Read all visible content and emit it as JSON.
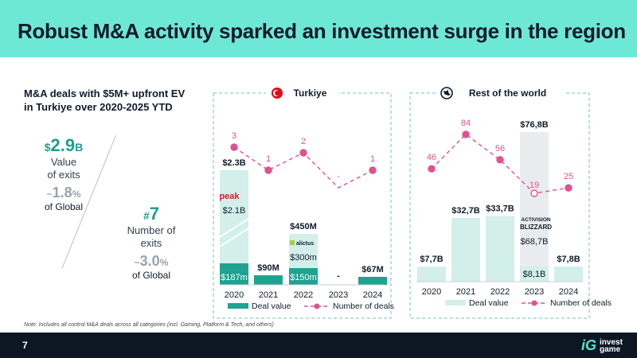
{
  "slide": {
    "title": "Robust M&A activity sparked an investment surge in the region",
    "page_number": "7",
    "note": "Note: Includes all control M&A deals across all categories (incl. Gaming, Platform & Tech, and others)",
    "logo_mark": "iG",
    "logo_line1": "invest",
    "logo_line2": "game"
  },
  "summary": {
    "heading_line1": "M&A deals with $5M+ upfront EV",
    "heading_line2": "in Turkiye over 2020-2025 YTD",
    "value_currency": "$",
    "value_number": "2.9",
    "value_unit": "B",
    "value_label1": "Value",
    "value_label2": "of exits",
    "value_share_prefix": "~",
    "value_share_number": "1.8",
    "value_share_unit": "%",
    "value_share_label": "of Global",
    "count_prefix": "#",
    "count_number": "7",
    "count_label1": "Number of",
    "count_label2": "exits",
    "count_share_prefix": "~",
    "count_share_number": "3.0",
    "count_share_unit": "%",
    "count_share_label": "of Global"
  },
  "colors": {
    "bar": "#d3efea",
    "bar_accent": "#1fa390",
    "line": "#e0528f",
    "gray_bar": "#e9ecef",
    "frame": "#73c6b4"
  },
  "chart_data": [
    {
      "type": "bar",
      "title": "Turkiye",
      "categories": [
        "2020",
        "2021",
        "2022",
        "2023",
        "2024"
      ],
      "series": [
        {
          "name": "Deal value",
          "values": [
            2300,
            90,
            450,
            0,
            67
          ],
          "unit": "$M"
        },
        {
          "name": "Deal value (highlighted portion)",
          "values": [
            187,
            90,
            150,
            0,
            67
          ],
          "unit": "$M"
        },
        {
          "name": "Number of deals",
          "values": [
            3,
            1,
            2,
            0,
            1
          ],
          "type": "line"
        }
      ],
      "value_labels": [
        "$2.3B",
        "$90M",
        "$450M",
        "-",
        "$67M"
      ],
      "inner_labels": [
        "$187m",
        "",
        "$150m",
        "",
        ""
      ],
      "annotations": [
        "$2.1B",
        "$300m"
      ],
      "annotation_logos": [
        "peak",
        "alictus"
      ],
      "deal_count_labels": [
        "3",
        "1",
        "2",
        "-",
        "1"
      ],
      "legend": [
        "Deal value",
        "Number of deals"
      ]
    },
    {
      "type": "bar",
      "title": "Rest of the world",
      "categories": [
        "2020",
        "2021",
        "2022",
        "2023",
        "2024"
      ],
      "series": [
        {
          "name": "Deal value",
          "values": [
            7.7,
            32.7,
            33.7,
            76.8,
            7.8
          ],
          "unit": "$B"
        },
        {
          "name": "Deal value (excl. Activision Blizzard)",
          "values": [
            7.7,
            32.7,
            33.7,
            8.1,
            7.8
          ],
          "unit": "$B"
        },
        {
          "name": "Number of deals",
          "values": [
            46,
            84,
            56,
            19,
            25
          ],
          "type": "line"
        }
      ],
      "value_labels": [
        "$7,7B",
        "$32,7B",
        "$33,7B",
        "$76,8B",
        "$7,8B"
      ],
      "inner_labels": [
        "",
        "",
        "",
        "$8,1B",
        ""
      ],
      "annotations": [
        "$68,7B"
      ],
      "annotation_logos": [
        "ACTIVISION BLIZZARD"
      ],
      "deal_count_labels": [
        "46",
        "84",
        "56",
        "19",
        "25"
      ],
      "legend": [
        "Deal value",
        "Number of deals"
      ]
    }
  ]
}
